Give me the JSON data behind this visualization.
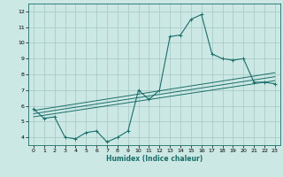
{
  "xlabel": "Humidex (Indice chaleur)",
  "bg_color": "#cce8e4",
  "grid_color": "#aaccca",
  "line_color": "#1a6e6a",
  "xlim": [
    -0.5,
    23.5
  ],
  "ylim": [
    3.5,
    12.5
  ],
  "xticks": [
    0,
    1,
    2,
    3,
    4,
    5,
    6,
    7,
    8,
    9,
    10,
    11,
    12,
    13,
    14,
    15,
    16,
    17,
    18,
    19,
    20,
    21,
    22,
    23
  ],
  "yticks": [
    4,
    5,
    6,
    7,
    8,
    9,
    10,
    11,
    12
  ],
  "series1_x": [
    0,
    1,
    2,
    3,
    4,
    5,
    6,
    7,
    8,
    9,
    10,
    11,
    12,
    13,
    14,
    15,
    16,
    17,
    18,
    19,
    20,
    21,
    22,
    23
  ],
  "series1_y": [
    5.8,
    5.2,
    5.3,
    4.0,
    3.9,
    4.3,
    4.4,
    3.7,
    4.0,
    4.4,
    7.0,
    6.4,
    7.0,
    10.4,
    10.5,
    11.5,
    11.8,
    9.3,
    9.0,
    8.9,
    9.0,
    7.5,
    7.5,
    7.4
  ],
  "series2_x": [
    0,
    23
  ],
  "series2_y": [
    5.3,
    7.6
  ],
  "series3_x": [
    0,
    23
  ],
  "series3_y": [
    5.7,
    8.1
  ],
  "series4_x": [
    0,
    23
  ],
  "series4_y": [
    5.5,
    7.85
  ]
}
